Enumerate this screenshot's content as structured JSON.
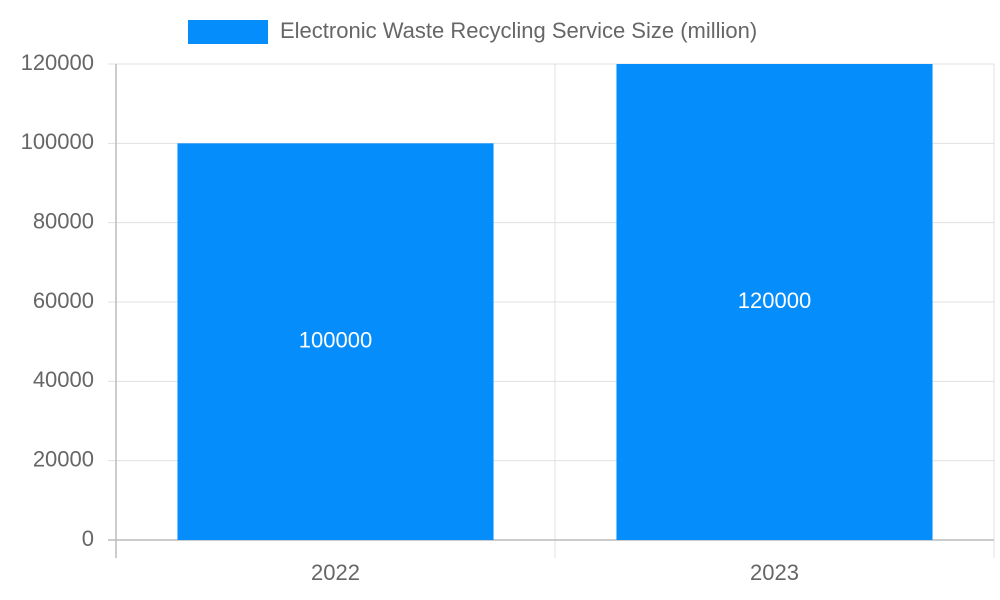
{
  "chart_data": {
    "type": "bar",
    "categories": [
      "2022",
      "2023"
    ],
    "series": [
      {
        "name": "Electronic Waste Recycling Service Size (million)",
        "color": "#058efb",
        "values": [
          100000,
          120000
        ]
      }
    ],
    "ylim": [
      0,
      120000
    ],
    "yticks": [
      0,
      20000,
      40000,
      60000,
      80000,
      100000,
      120000
    ],
    "grid": true,
    "legend": "top",
    "data_labels": true
  }
}
